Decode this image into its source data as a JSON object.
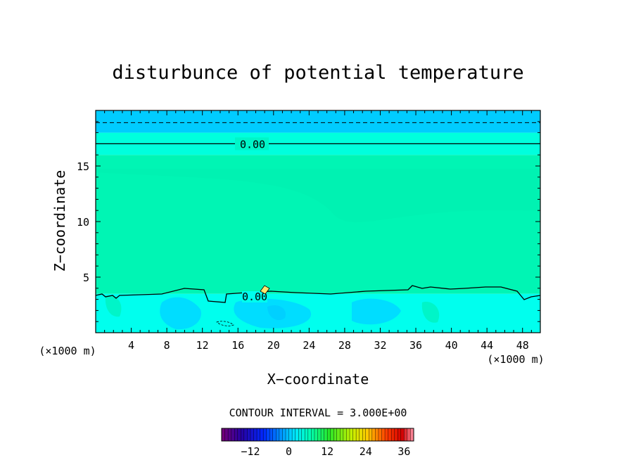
{
  "chart_data": {
    "type": "heatmap",
    "title": "disturbunce of potential temperature",
    "xlabel": "X−coordinate",
    "ylabel": "Z−coordinate",
    "x_unit_left": "(×1000 m)",
    "x_unit_right": "(×1000 m)",
    "xlim": [
      0,
      50
    ],
    "ylim": [
      0,
      20
    ],
    "x_ticks": [
      "4",
      "8",
      "12",
      "16",
      "20",
      "24",
      "28",
      "32",
      "36",
      "40",
      "44",
      "48"
    ],
    "y_ticks": [
      "5",
      "10",
      "15"
    ],
    "contour_labels": [
      "0.00",
      "0.00"
    ],
    "contour_interval_text": "CONTOUR INTERVAL = 3.000E+00",
    "colorbar": {
      "range": [
        -21,
        39
      ],
      "ticks": [
        "−12",
        "0",
        "12",
        "24",
        "36"
      ]
    },
    "layers": [
      {
        "zmin": 0,
        "zmax": 3.5,
        "color": "#00ffee",
        "approx_value": -1.5
      },
      {
        "zmin": 3.5,
        "zmax": 16,
        "color": "#00f5b4",
        "approx_value": 1.5
      },
      {
        "zmin": 16,
        "zmax": 18,
        "color": "#00ffdd",
        "approx_value": 0
      },
      {
        "zmin": 18,
        "zmax": 20,
        "color": "#00ccff",
        "approx_value": -3
      }
    ],
    "grid": false
  }
}
